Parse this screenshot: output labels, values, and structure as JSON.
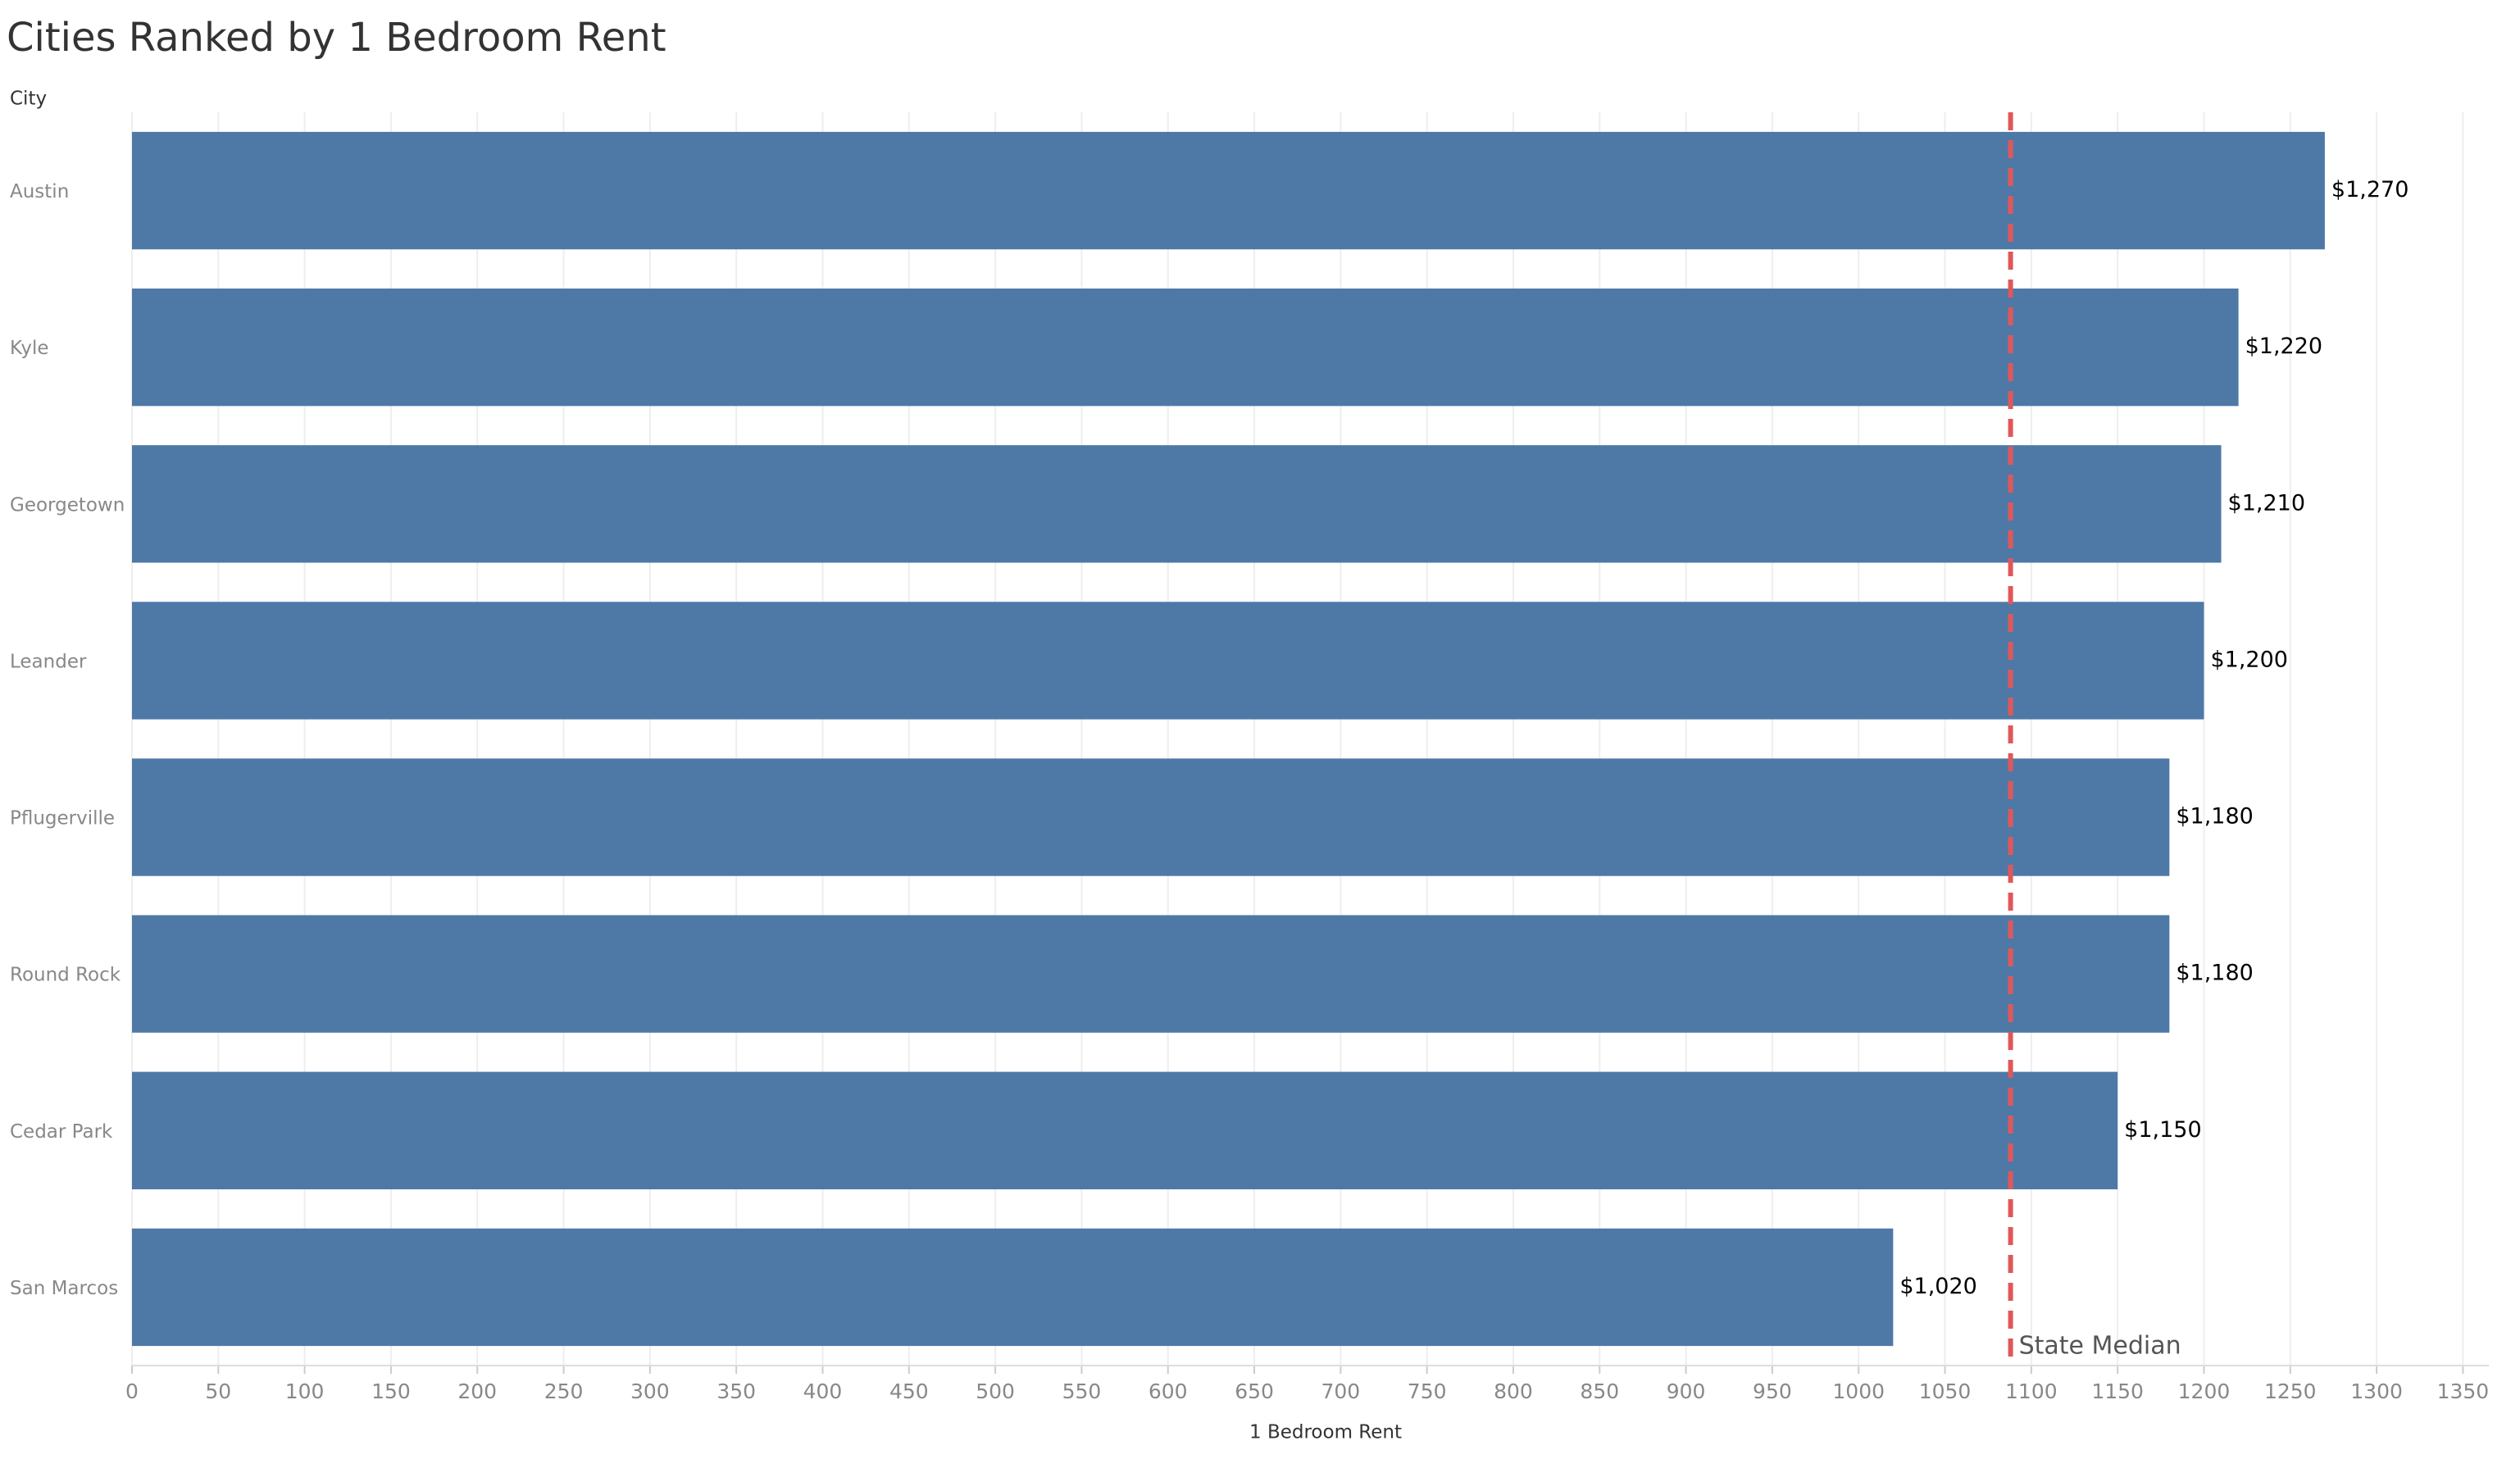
{
  "chart_data": {
    "type": "bar",
    "orientation": "horizontal",
    "title": "Cities Ranked by 1 Bedroom Rent",
    "ylabel": "City",
    "xlabel": "1 Bedroom Rent",
    "categories": [
      "Austin",
      "Kyle",
      "Georgetown",
      "Leander",
      "Pflugerville",
      "Round Rock",
      "Cedar Park",
      "San Marcos"
    ],
    "values": [
      1270,
      1220,
      1210,
      1200,
      1180,
      1180,
      1150,
      1020
    ],
    "value_labels": [
      "$1,270",
      "$1,220",
      "$1,210",
      "$1,200",
      "$1,180",
      "$1,180",
      "$1,150",
      "$1,020"
    ],
    "color": "#4e79a7",
    "xlim": [
      0,
      1365
    ],
    "xticks": [
      0,
      50,
      100,
      150,
      200,
      250,
      300,
      350,
      400,
      450,
      500,
      550,
      600,
      650,
      700,
      750,
      800,
      850,
      900,
      950,
      1000,
      1050,
      1100,
      1150,
      1200,
      1250,
      1300,
      1350
    ],
    "grid": true,
    "reference_line": {
      "value": 1088,
      "label": "State Median",
      "color": "#e15759"
    }
  }
}
